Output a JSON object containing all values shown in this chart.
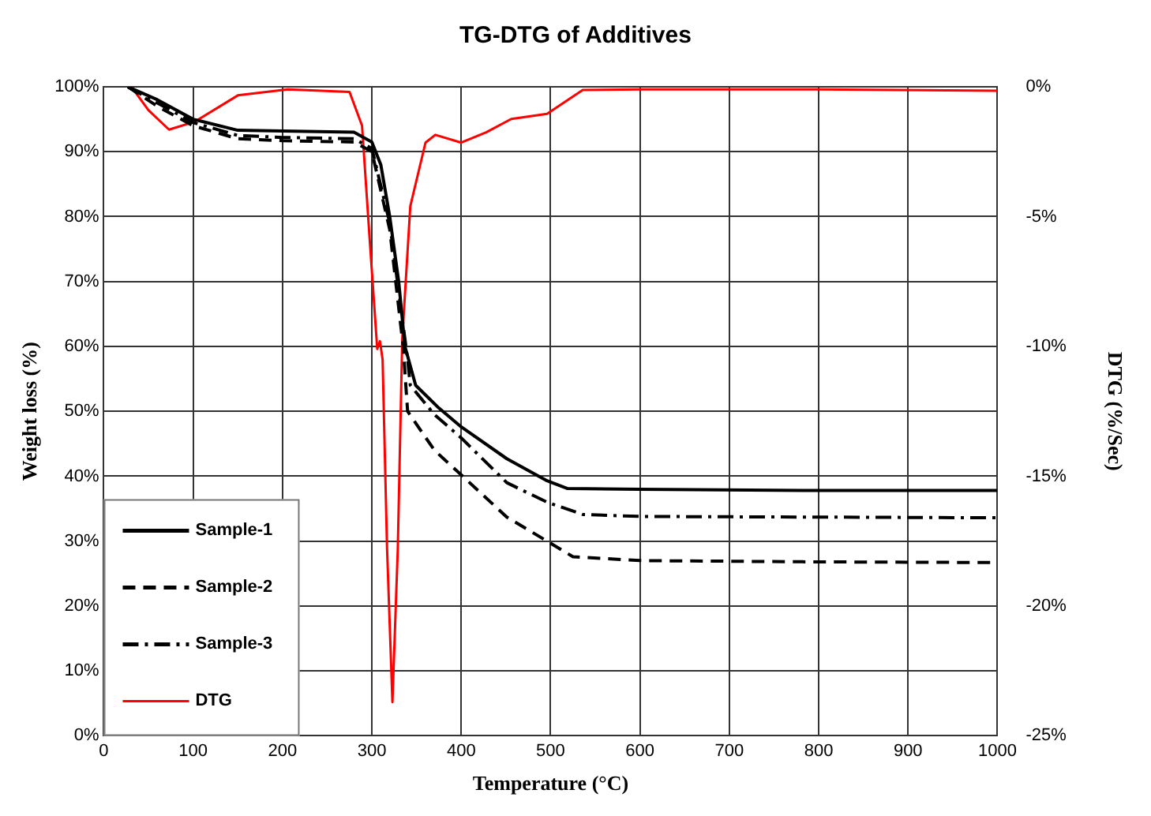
{
  "chart_data": {
    "type": "line",
    "title": "TG-DTG of Additives",
    "xlabel": "Temperature (°C)",
    "ylabel": "Weight loss (%)",
    "y2label": "DTG (%/Sec)",
    "xlim": [
      0,
      1000
    ],
    "xticks": [
      0,
      100,
      200,
      300,
      400,
      500,
      600,
      700,
      800,
      900,
      1000
    ],
    "ylim": [
      0,
      100
    ],
    "yticks": [
      {
        "value": 0,
        "label": "0%"
      },
      {
        "value": 10,
        "label": "10%"
      },
      {
        "value": 20,
        "label": "20%"
      },
      {
        "value": 30,
        "label": "30%"
      },
      {
        "value": 40,
        "label": "40%"
      },
      {
        "value": 50,
        "label": "50%"
      },
      {
        "value": 60,
        "label": "60%"
      },
      {
        "value": 70,
        "label": "70%"
      },
      {
        "value": 80,
        "label": "80%"
      },
      {
        "value": 90,
        "label": "90%"
      },
      {
        "value": 100,
        "label": "100%"
      }
    ],
    "y2lim": [
      -25,
      0
    ],
    "y2ticks": [
      {
        "value": -25,
        "label": "-25%"
      },
      {
        "value": -20,
        "label": "-20%"
      },
      {
        "value": -15,
        "label": "-15%"
      },
      {
        "value": -10,
        "label": "-10%"
      },
      {
        "value": -5,
        "label": "-5%"
      },
      {
        "value": 0,
        "label": "0%"
      }
    ],
    "grid": true,
    "legend": "bottom left",
    "marker": "none",
    "series": [
      {
        "name": "Sample-1",
        "color": "#000000",
        "line_style": "solid",
        "x": [
          27,
          60,
          100,
          150,
          200,
          280,
          300,
          310,
          320,
          330,
          337,
          349,
          375,
          400,
          451,
          496,
          519,
          600,
          800,
          1000
        ],
        "values": [
          100,
          98,
          95,
          93.3,
          93.2,
          93,
          91.5,
          88,
          80,
          70,
          60,
          54,
          50.5,
          47.6,
          42.7,
          39.3,
          38.1,
          38,
          37.8,
          37.8
        ]
      },
      {
        "name": "Sample-2",
        "color": "#000000",
        "line_style": "dashed",
        "x": [
          27,
          60,
          100,
          150,
          200,
          280,
          300,
          320,
          335,
          340,
          370,
          400,
          451,
          496,
          525,
          600,
          800,
          1000
        ],
        "values": [
          100,
          97,
          94,
          92,
          91.7,
          91.5,
          90,
          78,
          60,
          50,
          44,
          40.2,
          33.7,
          30,
          27.6,
          27,
          26.8,
          26.7
        ]
      },
      {
        "name": "Sample-3",
        "color": "#000000",
        "line_style": "dashdot",
        "x": [
          27,
          60,
          100,
          150,
          200,
          280,
          300,
          320,
          340,
          343,
          370,
          400,
          451,
          496,
          536,
          600,
          800,
          1000
        ],
        "values": [
          100,
          97.5,
          94.5,
          92.5,
          92.2,
          92,
          90.5,
          79,
          58,
          54,
          49.5,
          45.9,
          39,
          36,
          34.1,
          33.8,
          33.7,
          33.6
        ]
      },
      {
        "name": "DTG",
        "color": "#ff0000",
        "line_style": "solid",
        "axis": "y2",
        "x": [
          31,
          50,
          73,
          102,
          150,
          206,
          275,
          289,
          297,
          306,
          309,
          312,
          317,
          323,
          329,
          334,
          343,
          360,
          371,
          400,
          428,
          456,
          496,
          536,
          600,
          800,
          1000
        ],
        "values": [
          0,
          -0.9,
          -1.65,
          -1.34,
          -0.33,
          -0.1,
          -0.2,
          -1.5,
          -5.6,
          -10.1,
          -9.8,
          -10.5,
          -17.8,
          -23.7,
          -17.8,
          -9.7,
          -4.6,
          -2.15,
          -1.85,
          -2.15,
          -1.75,
          -1.24,
          -1.04,
          -0.12,
          -0.1,
          -0.1,
          -0.15
        ]
      }
    ]
  }
}
